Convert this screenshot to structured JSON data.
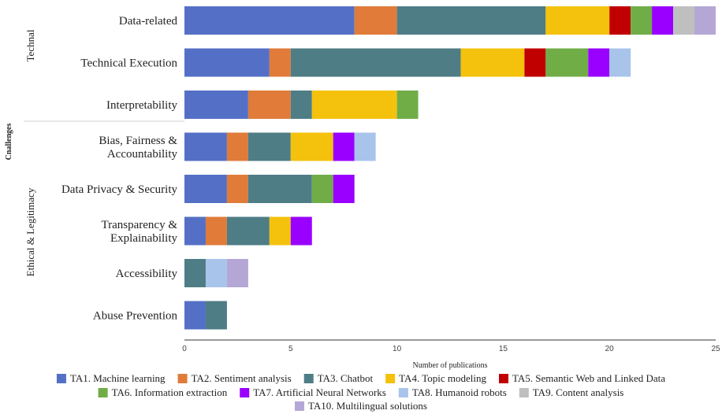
{
  "chart_data": {
    "type": "bar",
    "orientation": "horizontal",
    "stacked": true,
    "xlabel": "Number of publications",
    "ylabel": "Cnallenges",
    "xlim": [
      0,
      25
    ],
    "xticks": [
      0,
      5,
      10,
      15,
      20,
      25
    ],
    "grid": false,
    "legend_position": "bottom",
    "groups": [
      {
        "label": "Technal",
        "categories": [
          "Data-related",
          "Technical Execution",
          "Interpretability"
        ]
      },
      {
        "label": "Ethical & Legitimacy",
        "categories": [
          "Bias, Fairness & Accountability",
          "Data Privacy & Security",
          "Transparency & Explainability",
          "Accessibility",
          "Abuse Prevention"
        ]
      }
    ],
    "categories": [
      "Data-related",
      "Technical Execution",
      "Interpretability",
      "Bias, Fairness & Accountability",
      "Data Privacy & Security",
      "Transparency & Explainability",
      "Accessibility",
      "Abuse Prevention"
    ],
    "category_display": [
      [
        "Data-related"
      ],
      [
        "Technical Execution"
      ],
      [
        "Interpretability"
      ],
      [
        "Bias, Fairness &",
        "Accountability"
      ],
      [
        "Data Privacy & Security"
      ],
      [
        "Transparency &",
        "Explainability"
      ],
      [
        "Accessibility"
      ],
      [
        "Abuse Prevention"
      ]
    ],
    "series": [
      {
        "name": "TA1. Machine learning",
        "color": "#5470c6",
        "values": [
          8,
          4,
          3,
          2,
          2,
          1,
          0,
          1
        ]
      },
      {
        "name": "TA2. Sentiment analysis",
        "color": "#e07b39",
        "values": [
          2,
          1,
          2,
          1,
          1,
          1,
          0,
          0
        ]
      },
      {
        "name": "TA3. Chatbot",
        "color": "#4e7d86",
        "values": [
          7,
          8,
          1,
          2,
          3,
          2,
          1,
          1
        ]
      },
      {
        "name": "TA4. Topic modeling",
        "color": "#f4c20d",
        "values": [
          3,
          3,
          4,
          2,
          0,
          1,
          0,
          0
        ]
      },
      {
        "name": "TA5. Semantic Web and Linked Data",
        "color": "#c00000",
        "values": [
          1,
          1,
          0,
          0,
          0,
          0,
          0,
          0
        ]
      },
      {
        "name": "TA6. Information extraction",
        "color": "#70ad47",
        "values": [
          1,
          2,
          1,
          0,
          1,
          0,
          0,
          0
        ]
      },
      {
        "name": "TA7. Artificial Neural Networks",
        "color": "#9900ff",
        "values": [
          1,
          1,
          0,
          1,
          1,
          1,
          0,
          0
        ]
      },
      {
        "name": "TA8. Humanoid robots",
        "color": "#a9c4eb",
        "values": [
          0,
          1,
          0,
          1,
          0,
          0,
          1,
          0
        ]
      },
      {
        "name": "TA9. Content analysis",
        "color": "#bfbfbf",
        "values": [
          1,
          0,
          0,
          0,
          0,
          0,
          0,
          0
        ]
      },
      {
        "name": "TA10. Multilingual solutions",
        "color": "#b4a7d6",
        "values": [
          1,
          0,
          0,
          0,
          0,
          0,
          1,
          0
        ]
      }
    ]
  }
}
